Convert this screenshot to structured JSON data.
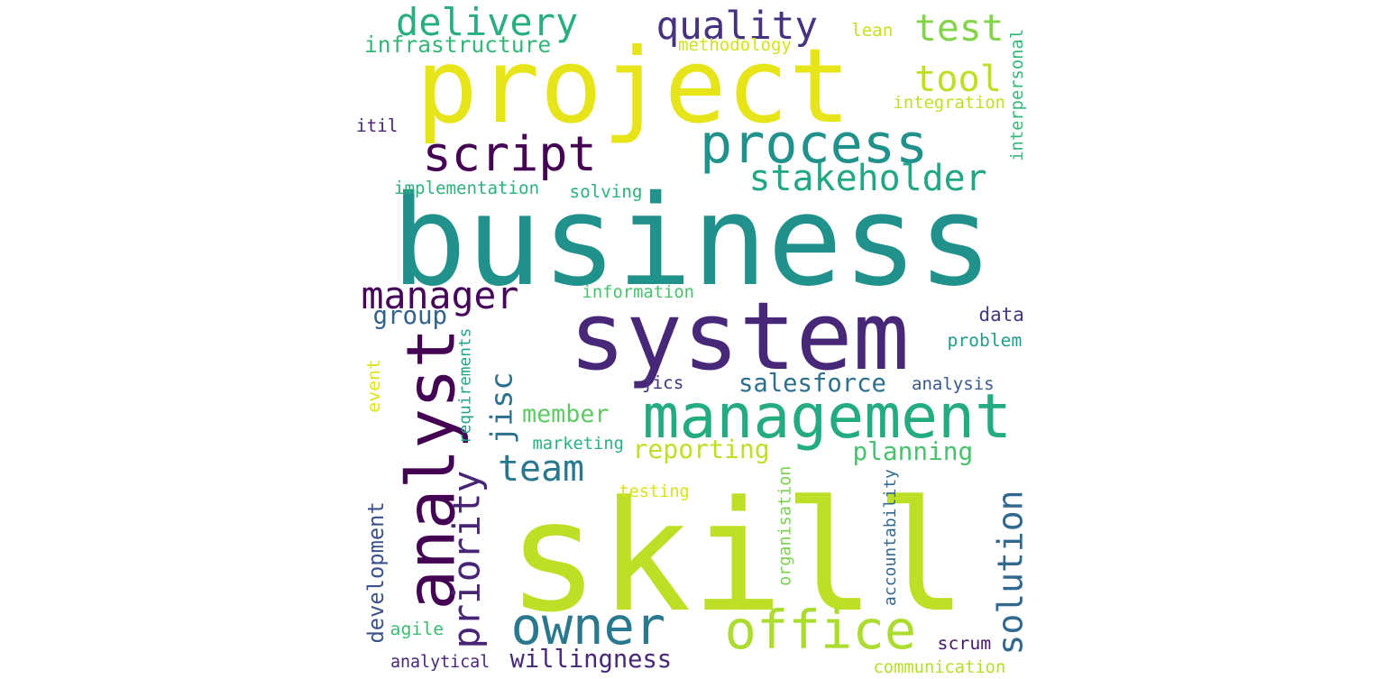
{
  "words": [
    {
      "text": "business",
      "color": "#21918c"
    },
    {
      "text": "project",
      "color": "#e7e419"
    },
    {
      "text": "skill",
      "color": "#bddf26"
    },
    {
      "text": "system",
      "color": "#472878"
    },
    {
      "text": "management",
      "color": "#25ab82"
    },
    {
      "text": "process",
      "color": "#21918c"
    },
    {
      "text": "office",
      "color": "#addc30"
    },
    {
      "text": "analyst",
      "color": "#440154"
    },
    {
      "text": "owner",
      "color": "#29788e"
    },
    {
      "text": "script",
      "color": "#440154"
    },
    {
      "text": "solution",
      "color": "#31688e"
    },
    {
      "text": "quality",
      "color": "#46327e"
    },
    {
      "text": "delivery",
      "color": "#28ae80"
    },
    {
      "text": "priority",
      "color": "#482475"
    },
    {
      "text": "manager",
      "color": "#450559"
    },
    {
      "text": "jisc",
      "color": "#2c728e"
    },
    {
      "text": "stakeholder",
      "color": "#22a785"
    },
    {
      "text": "test",
      "color": "#84d44b"
    },
    {
      "text": "team",
      "color": "#2a788e"
    },
    {
      "text": "tool",
      "color": "#bddf26"
    },
    {
      "text": "salesforce",
      "color": "#2d708e"
    },
    {
      "text": "reporting",
      "color": "#bddf26"
    },
    {
      "text": "planning",
      "color": "#4ac16d"
    },
    {
      "text": "development",
      "color": "#3b528b"
    },
    {
      "text": "willingness",
      "color": "#482878"
    },
    {
      "text": "member",
      "color": "#5ec962"
    },
    {
      "text": "infrastructure",
      "color": "#35b779"
    },
    {
      "text": "group",
      "color": "#33638d"
    },
    {
      "text": "methodology",
      "color": "#d2e21b"
    },
    {
      "text": "lean",
      "color": "#c8e020"
    },
    {
      "text": "integration",
      "color": "#c2df23"
    },
    {
      "text": "interpersonal",
      "color": "#35b779"
    },
    {
      "text": "itil",
      "color": "#482475"
    },
    {
      "text": "implementation",
      "color": "#2db27d"
    },
    {
      "text": "solving",
      "color": "#2db27d"
    },
    {
      "text": "information",
      "color": "#4ac16d"
    },
    {
      "text": "data",
      "color": "#453781"
    },
    {
      "text": "problem",
      "color": "#1f9e89"
    },
    {
      "text": "analysis",
      "color": "#38588c"
    },
    {
      "text": "jics",
      "color": "#46337f"
    },
    {
      "text": "requirements",
      "color": "#20a386"
    },
    {
      "text": "event",
      "color": "#dde318"
    },
    {
      "text": "marketing",
      "color": "#2ab07f"
    },
    {
      "text": "testing",
      "color": "#d8e219"
    },
    {
      "text": "organisation",
      "color": "#7ad151"
    },
    {
      "text": "accountability",
      "color": "#31688e"
    },
    {
      "text": "agile",
      "color": "#3fbc73"
    },
    {
      "text": "analytical",
      "color": "#482677"
    },
    {
      "text": "scrum",
      "color": "#48196b"
    },
    {
      "text": "communication",
      "color": "#b5de2b"
    }
  ]
}
